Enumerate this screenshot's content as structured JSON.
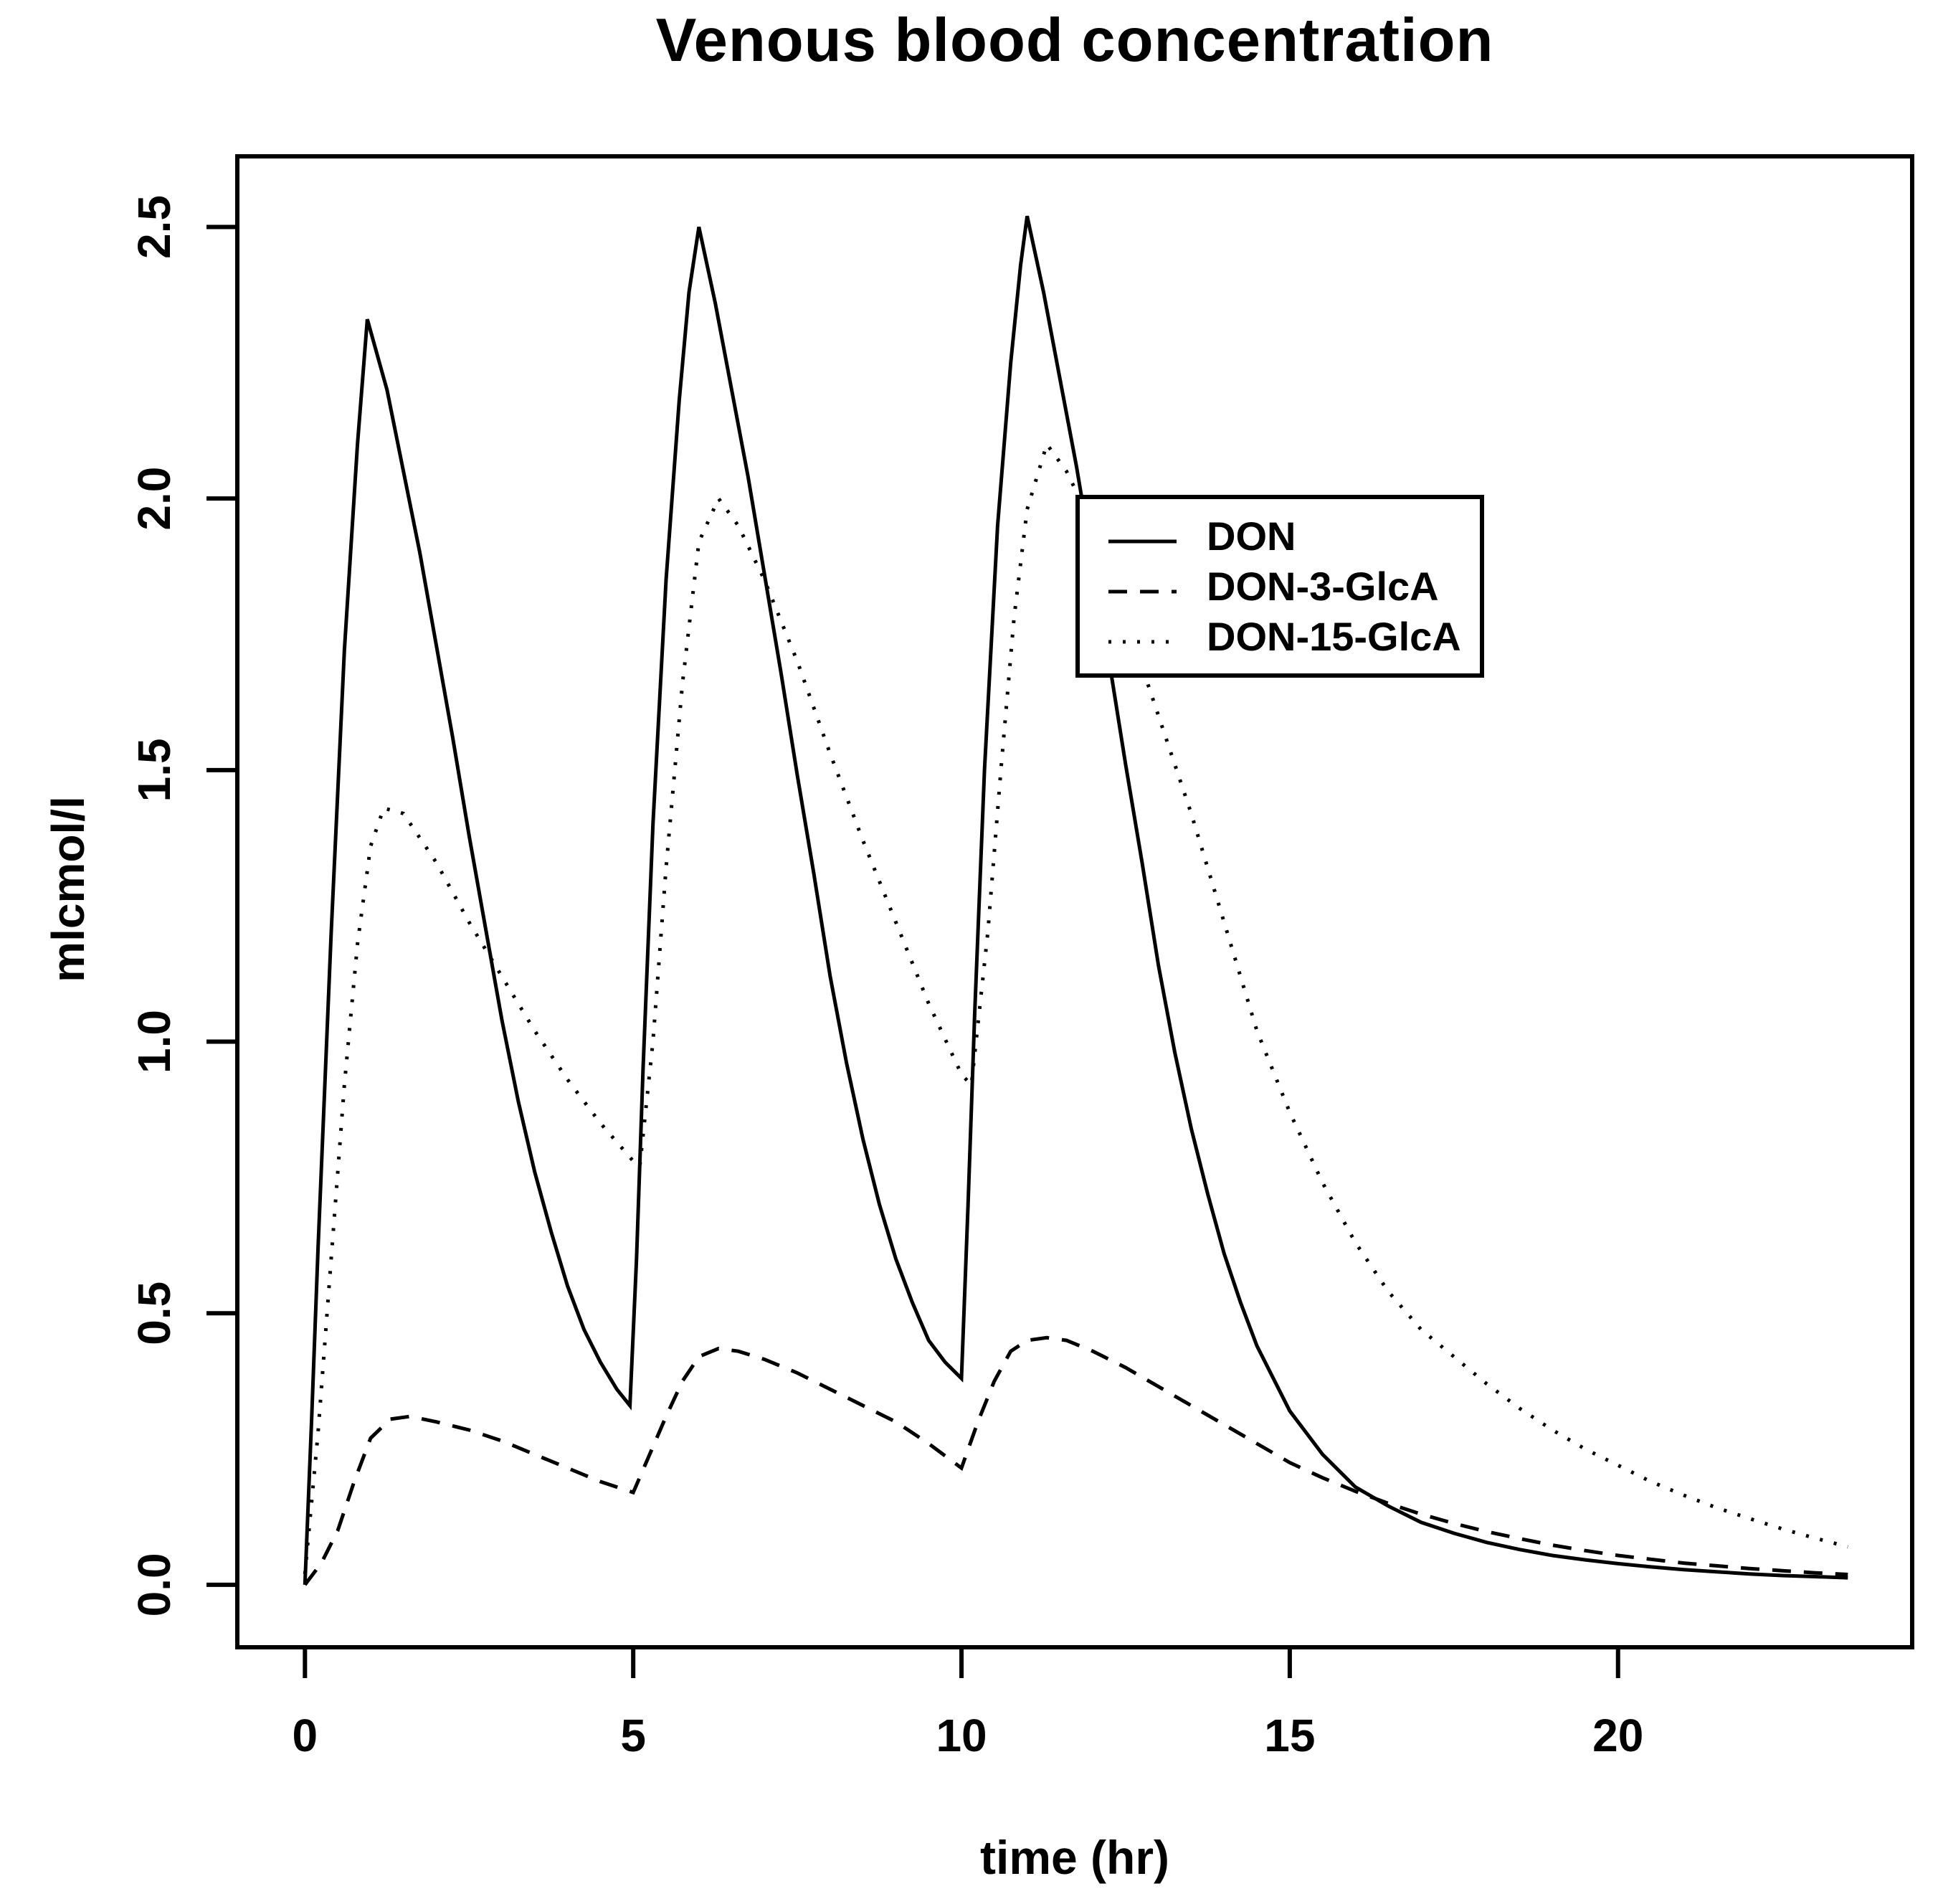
{
  "chart_data": {
    "type": "line",
    "title": "Venous blood concentration",
    "xlabel": "time (hr)",
    "ylabel": "mlcmol/l",
    "x_ticks": [
      0,
      5,
      10,
      15,
      20
    ],
    "y_ticks": [
      "0.0",
      "0.5",
      "1.0",
      "1.5",
      "2.0",
      "2.5"
    ],
    "xlim": [
      -1.03,
      24.48
    ],
    "ylim": [
      -0.115,
      2.63
    ],
    "grid": false,
    "background": "#ffffff",
    "line_color": "#000000",
    "legend_position": "inside-upper-right",
    "series": [
      {
        "name": "DON",
        "style": "solid",
        "points": [
          [
            0,
            0
          ],
          [
            0.1,
            0.3
          ],
          [
            0.2,
            0.62
          ],
          [
            0.4,
            1.2
          ],
          [
            0.6,
            1.72
          ],
          [
            0.8,
            2.1
          ],
          [
            0.95,
            2.33
          ],
          [
            1.25,
            2.2
          ],
          [
            1.5,
            2.05
          ],
          [
            1.75,
            1.9
          ],
          [
            2,
            1.73
          ],
          [
            2.25,
            1.56
          ],
          [
            2.5,
            1.38
          ],
          [
            2.75,
            1.21
          ],
          [
            3,
            1.04
          ],
          [
            3.25,
            0.89
          ],
          [
            3.5,
            0.76
          ],
          [
            3.75,
            0.65
          ],
          [
            4,
            0.55
          ],
          [
            4.25,
            0.47
          ],
          [
            4.5,
            0.41
          ],
          [
            4.75,
            0.36
          ],
          [
            4.95,
            0.33
          ],
          [
            5.05,
            0.6
          ],
          [
            5.15,
            0.95
          ],
          [
            5.3,
            1.4
          ],
          [
            5.5,
            1.85
          ],
          [
            5.7,
            2.18
          ],
          [
            5.85,
            2.38
          ],
          [
            6,
            2.5
          ],
          [
            6.25,
            2.36
          ],
          [
            6.5,
            2.2
          ],
          [
            6.75,
            2.04
          ],
          [
            7,
            1.86
          ],
          [
            7.25,
            1.68
          ],
          [
            7.5,
            1.49
          ],
          [
            7.75,
            1.31
          ],
          [
            8,
            1.12
          ],
          [
            8.25,
            0.96
          ],
          [
            8.5,
            0.82
          ],
          [
            8.75,
            0.7
          ],
          [
            9,
            0.6
          ],
          [
            9.25,
            0.52
          ],
          [
            9.5,
            0.45
          ],
          [
            9.75,
            0.41
          ],
          [
            10,
            0.38
          ],
          [
            10.1,
            0.7
          ],
          [
            10.2,
            1.05
          ],
          [
            10.35,
            1.5
          ],
          [
            10.55,
            1.95
          ],
          [
            10.75,
            2.25
          ],
          [
            10.9,
            2.43
          ],
          [
            11,
            2.52
          ],
          [
            11.25,
            2.38
          ],
          [
            11.5,
            2.22
          ],
          [
            11.75,
            2.06
          ],
          [
            12,
            1.88
          ],
          [
            12.25,
            1.7
          ],
          [
            12.5,
            1.51
          ],
          [
            12.75,
            1.33
          ],
          [
            13,
            1.14
          ],
          [
            13.25,
            0.98
          ],
          [
            13.5,
            0.84
          ],
          [
            13.75,
            0.72
          ],
          [
            14,
            0.61
          ],
          [
            14.25,
            0.52
          ],
          [
            14.5,
            0.44
          ],
          [
            14.75,
            0.38
          ],
          [
            15,
            0.32
          ],
          [
            15.25,
            0.28
          ],
          [
            15.5,
            0.24
          ],
          [
            16,
            0.18
          ],
          [
            16.5,
            0.145
          ],
          [
            17,
            0.115
          ],
          [
            17.5,
            0.095
          ],
          [
            18,
            0.078
          ],
          [
            18.5,
            0.065
          ],
          [
            19,
            0.054
          ],
          [
            19.5,
            0.046
          ],
          [
            20,
            0.039
          ],
          [
            20.5,
            0.033
          ],
          [
            21,
            0.028
          ],
          [
            21.5,
            0.024
          ],
          [
            22,
            0.02
          ],
          [
            22.5,
            0.017
          ],
          [
            23,
            0.015
          ],
          [
            23.5,
            0.013
          ]
        ]
      },
      {
        "name": "DON-3-GlcA",
        "style": "dashed",
        "points": [
          [
            0,
            0
          ],
          [
            0.25,
            0.04
          ],
          [
            0.5,
            0.1
          ],
          [
            0.75,
            0.19
          ],
          [
            1,
            0.27
          ],
          [
            1.3,
            0.305
          ],
          [
            1.6,
            0.31
          ],
          [
            2,
            0.3
          ],
          [
            2.5,
            0.285
          ],
          [
            3,
            0.265
          ],
          [
            3.5,
            0.24
          ],
          [
            4,
            0.215
          ],
          [
            4.5,
            0.19
          ],
          [
            5,
            0.17
          ],
          [
            5.25,
            0.24
          ],
          [
            5.5,
            0.31
          ],
          [
            5.75,
            0.375
          ],
          [
            6,
            0.42
          ],
          [
            6.3,
            0.435
          ],
          [
            6.6,
            0.43
          ],
          [
            7,
            0.415
          ],
          [
            7.5,
            0.39
          ],
          [
            8,
            0.36
          ],
          [
            8.5,
            0.33
          ],
          [
            9,
            0.3
          ],
          [
            9.5,
            0.26
          ],
          [
            10,
            0.215
          ],
          [
            10.25,
            0.3
          ],
          [
            10.5,
            0.375
          ],
          [
            10.75,
            0.43
          ],
          [
            11,
            0.45
          ],
          [
            11.3,
            0.455
          ],
          [
            11.6,
            0.45
          ],
          [
            12,
            0.43
          ],
          [
            12.5,
            0.4
          ],
          [
            13,
            0.365
          ],
          [
            13.5,
            0.33
          ],
          [
            14,
            0.295
          ],
          [
            14.5,
            0.26
          ],
          [
            15,
            0.225
          ],
          [
            15.5,
            0.197
          ],
          [
            16,
            0.172
          ],
          [
            16.5,
            0.15
          ],
          [
            17,
            0.13
          ],
          [
            17.5,
            0.113
          ],
          [
            18,
            0.098
          ],
          [
            18.5,
            0.085
          ],
          [
            19,
            0.073
          ],
          [
            19.5,
            0.063
          ],
          [
            20,
            0.054
          ],
          [
            20.5,
            0.047
          ],
          [
            21,
            0.04
          ],
          [
            21.5,
            0.035
          ],
          [
            22,
            0.03
          ],
          [
            22.5,
            0.026
          ],
          [
            23,
            0.022
          ],
          [
            23.5,
            0.019
          ]
        ]
      },
      {
        "name": "DON-15-GlcA",
        "style": "dotted",
        "points": [
          [
            0,
            0.02
          ],
          [
            0.2,
            0.28
          ],
          [
            0.4,
            0.6
          ],
          [
            0.6,
            0.92
          ],
          [
            0.8,
            1.18
          ],
          [
            1,
            1.36
          ],
          [
            1.2,
            1.43
          ],
          [
            1.5,
            1.42
          ],
          [
            2,
            1.33
          ],
          [
            2.5,
            1.22
          ],
          [
            3,
            1.12
          ],
          [
            3.5,
            1.02
          ],
          [
            4,
            0.93
          ],
          [
            4.5,
            0.85
          ],
          [
            5,
            0.78
          ],
          [
            5.1,
            0.77
          ],
          [
            5.3,
            1.0
          ],
          [
            5.5,
            1.32
          ],
          [
            5.75,
            1.66
          ],
          [
            6,
            1.92
          ],
          [
            6.3,
            2.0
          ],
          [
            6.6,
            1.95
          ],
          [
            7,
            1.85
          ],
          [
            7.5,
            1.7
          ],
          [
            8,
            1.53
          ],
          [
            8.5,
            1.37
          ],
          [
            9,
            1.22
          ],
          [
            9.5,
            1.07
          ],
          [
            10,
            0.94
          ],
          [
            10.15,
            0.92
          ],
          [
            10.4,
            1.2
          ],
          [
            10.6,
            1.5
          ],
          [
            10.8,
            1.78
          ],
          [
            11,
            1.98
          ],
          [
            11.3,
            2.1
          ],
          [
            11.6,
            2.05
          ],
          [
            12,
            1.95
          ],
          [
            12.5,
            1.78
          ],
          [
            13,
            1.6
          ],
          [
            13.5,
            1.42
          ],
          [
            14,
            1.22
          ],
          [
            14.5,
            1.02
          ],
          [
            15,
            0.87
          ],
          [
            15.5,
            0.74
          ],
          [
            16,
            0.63
          ],
          [
            16.5,
            0.54
          ],
          [
            17,
            0.47
          ],
          [
            17.5,
            0.42
          ],
          [
            18,
            0.37
          ],
          [
            18.5,
            0.325
          ],
          [
            19,
            0.285
          ],
          [
            19.5,
            0.25
          ],
          [
            20,
            0.22
          ],
          [
            20.5,
            0.19
          ],
          [
            21,
            0.165
          ],
          [
            21.5,
            0.142
          ],
          [
            22,
            0.122
          ],
          [
            22.5,
            0.103
          ],
          [
            23,
            0.086
          ],
          [
            23.5,
            0.07
          ]
        ]
      }
    ]
  }
}
